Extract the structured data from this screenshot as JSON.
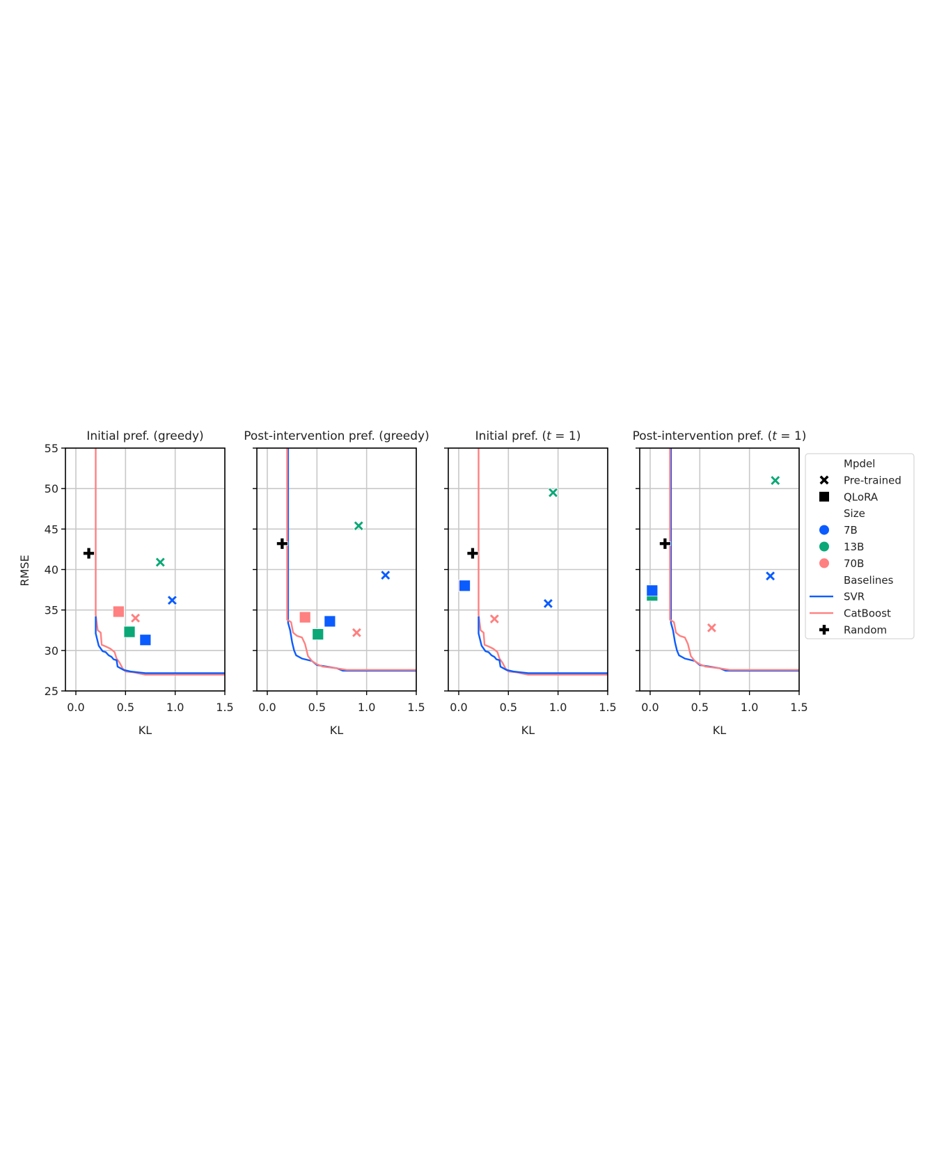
{
  "colors": {
    "7B": "#0b5cff",
    "13B": "#0aa876",
    "70B": "#ff8080",
    "SVR": "#0b5cff",
    "CatBoost": "#ff8080",
    "Random": "#000000",
    "grid": "#c8c8c8"
  },
  "legend": {
    "items": [
      {
        "kind": "header",
        "label": "Mpdel"
      },
      {
        "kind": "marker-x",
        "label": "Pre-trained",
        "color": "#000000"
      },
      {
        "kind": "marker-square",
        "label": "QLoRA",
        "color": "#000000"
      },
      {
        "kind": "header",
        "label": "Size"
      },
      {
        "kind": "marker-circle",
        "label": "7B",
        "color": "#0b5cff"
      },
      {
        "kind": "marker-circle",
        "label": "13B",
        "color": "#0aa876"
      },
      {
        "kind": "marker-circle",
        "label": "70B",
        "color": "#ff8080"
      },
      {
        "kind": "header",
        "label": "Baselines"
      },
      {
        "kind": "line",
        "label": "SVR",
        "color": "#0b5cff"
      },
      {
        "kind": "line",
        "label": "CatBoost",
        "color": "#ff8080"
      },
      {
        "kind": "marker-plus",
        "label": "Random",
        "color": "#000000"
      }
    ]
  },
  "chart_data": [
    {
      "type": "scatter",
      "title": "Initial pref. (greedy)",
      "xlabel": "KL",
      "ylabel": "RMSE",
      "xlim": [
        -0.105,
        1.5
      ],
      "ylim": [
        25,
        55
      ],
      "xticks": [
        "0.0",
        "0.5",
        "1.0",
        "1.5"
      ],
      "yticks": [
        "25",
        "30",
        "35",
        "40",
        "45",
        "50",
        "55"
      ],
      "grid": true,
      "points": [
        {
          "model": "Pre-trained",
          "size": "7B",
          "kl": 0.97,
          "rmse": 36.2
        },
        {
          "model": "Pre-trained",
          "size": "13B",
          "kl": 0.85,
          "rmse": 40.9
        },
        {
          "model": "Pre-trained",
          "size": "70B",
          "kl": 0.6,
          "rmse": 34.0
        },
        {
          "model": "QLoRA",
          "size": "7B",
          "kl": 0.7,
          "rmse": 31.3
        },
        {
          "model": "QLoRA",
          "size": "13B",
          "kl": 0.54,
          "rmse": 32.3
        },
        {
          "model": "QLoRA",
          "size": "70B",
          "kl": 0.43,
          "rmse": 34.8
        }
      ],
      "random": {
        "kl": 0.13,
        "rmse": 42.0
      },
      "baselines": {
        "CatBoost": [
          [
            0.2,
            55
          ],
          [
            0.2,
            34.4
          ],
          [
            0.21,
            33.5
          ],
          [
            0.22,
            32.5
          ],
          [
            0.25,
            32.2
          ],
          [
            0.26,
            30.7
          ],
          [
            0.3,
            30.5
          ],
          [
            0.35,
            30.2
          ],
          [
            0.39,
            29.8
          ],
          [
            0.41,
            29.0
          ],
          [
            0.44,
            28.5
          ],
          [
            0.47,
            27.8
          ],
          [
            0.5,
            27.4
          ],
          [
            0.58,
            27.3
          ],
          [
            0.62,
            27.2
          ],
          [
            0.7,
            27.0
          ],
          [
            1.5,
            27.0
          ]
        ],
        "SVR": [
          [
            0.2,
            34.2
          ],
          [
            0.2,
            32.1
          ],
          [
            0.23,
            30.6
          ],
          [
            0.27,
            29.9
          ],
          [
            0.3,
            29.8
          ],
          [
            0.33,
            29.4
          ],
          [
            0.36,
            29.2
          ],
          [
            0.38,
            28.9
          ],
          [
            0.41,
            28.8
          ],
          [
            0.42,
            28.0
          ],
          [
            0.45,
            27.8
          ],
          [
            0.48,
            27.6
          ],
          [
            0.55,
            27.4
          ],
          [
            0.62,
            27.3
          ],
          [
            0.7,
            27.2
          ],
          [
            1.5,
            27.2
          ]
        ]
      }
    },
    {
      "type": "scatter",
      "title": "Post-intervention pref. (greedy)",
      "xlabel": "KL",
      "ylabel": "",
      "xlim": [
        -0.105,
        1.5
      ],
      "ylim": [
        25,
        55
      ],
      "xticks": [
        "0.0",
        "0.5",
        "1.0",
        "1.5"
      ],
      "yticks": [],
      "grid": true,
      "points": [
        {
          "model": "Pre-trained",
          "size": "7B",
          "kl": 1.19,
          "rmse": 39.3
        },
        {
          "model": "Pre-trained",
          "size": "13B",
          "kl": 0.92,
          "rmse": 45.4
        },
        {
          "model": "Pre-trained",
          "size": "70B",
          "kl": 0.9,
          "rmse": 32.2
        },
        {
          "model": "QLoRA",
          "size": "7B",
          "kl": 0.63,
          "rmse": 33.6
        },
        {
          "model": "QLoRA",
          "size": "13B",
          "kl": 0.51,
          "rmse": 32.0
        },
        {
          "model": "QLoRA",
          "size": "70B",
          "kl": 0.38,
          "rmse": 34.1
        }
      ],
      "random": {
        "kl": 0.15,
        "rmse": 43.2
      },
      "baselines": {
        "SVR": [
          [
            0.21,
            55
          ],
          [
            0.21,
            33.4
          ],
          [
            0.23,
            32.5
          ],
          [
            0.25,
            31.0
          ],
          [
            0.27,
            30.0
          ],
          [
            0.29,
            29.4
          ],
          [
            0.35,
            29.0
          ],
          [
            0.45,
            28.7
          ],
          [
            0.5,
            28.2
          ],
          [
            0.6,
            28.0
          ],
          [
            0.7,
            27.8
          ],
          [
            0.76,
            27.5
          ],
          [
            1.5,
            27.5
          ]
        ],
        "CatBoost": [
          [
            0.2,
            55
          ],
          [
            0.2,
            33.8
          ],
          [
            0.24,
            33.5
          ],
          [
            0.26,
            32.2
          ],
          [
            0.3,
            31.8
          ],
          [
            0.35,
            31.6
          ],
          [
            0.38,
            30.8
          ],
          [
            0.41,
            29.3
          ],
          [
            0.45,
            28.7
          ],
          [
            0.5,
            28.3
          ],
          [
            0.56,
            28.0
          ],
          [
            0.7,
            27.8
          ],
          [
            0.8,
            27.6
          ],
          [
            1.5,
            27.6
          ]
        ]
      }
    },
    {
      "type": "scatter",
      "title": "Initial pref. (t = 1)",
      "xlabel": "KL",
      "ylabel": "",
      "xlim": [
        -0.105,
        1.5
      ],
      "ylim": [
        25,
        55
      ],
      "xticks": [
        "0.0",
        "0.5",
        "1.0",
        "1.5"
      ],
      "yticks": [],
      "grid": true,
      "points": [
        {
          "model": "Pre-trained",
          "size": "7B",
          "kl": 0.9,
          "rmse": 35.8
        },
        {
          "model": "Pre-trained",
          "size": "13B",
          "kl": 0.95,
          "rmse": 49.5
        },
        {
          "model": "Pre-trained",
          "size": "70B",
          "kl": 0.36,
          "rmse": 33.9
        },
        {
          "model": "QLoRA",
          "size": "70B",
          "kl": 0.05,
          "rmse": 38.0
        },
        {
          "model": "QLoRA",
          "size": "13B",
          "kl": 0.06,
          "rmse": 38.0
        },
        {
          "model": "QLoRA",
          "size": "7B",
          "kl": 0.06,
          "rmse": 38.0
        }
      ],
      "random": {
        "kl": 0.14,
        "rmse": 42.0
      },
      "baselines": {
        "CatBoost": [
          [
            0.2,
            55
          ],
          [
            0.2,
            34.4
          ],
          [
            0.21,
            33.5
          ],
          [
            0.22,
            32.5
          ],
          [
            0.25,
            32.2
          ],
          [
            0.26,
            30.7
          ],
          [
            0.3,
            30.5
          ],
          [
            0.35,
            30.2
          ],
          [
            0.39,
            29.8
          ],
          [
            0.41,
            29.0
          ],
          [
            0.44,
            28.5
          ],
          [
            0.47,
            27.8
          ],
          [
            0.5,
            27.4
          ],
          [
            0.58,
            27.3
          ],
          [
            0.62,
            27.2
          ],
          [
            0.7,
            27.0
          ],
          [
            1.5,
            27.0
          ]
        ],
        "SVR": [
          [
            0.2,
            34.2
          ],
          [
            0.2,
            32.1
          ],
          [
            0.23,
            30.6
          ],
          [
            0.27,
            29.9
          ],
          [
            0.3,
            29.8
          ],
          [
            0.33,
            29.4
          ],
          [
            0.36,
            29.2
          ],
          [
            0.38,
            28.9
          ],
          [
            0.41,
            28.8
          ],
          [
            0.42,
            28.0
          ],
          [
            0.45,
            27.8
          ],
          [
            0.48,
            27.6
          ],
          [
            0.55,
            27.4
          ],
          [
            0.62,
            27.3
          ],
          [
            0.7,
            27.2
          ],
          [
            1.5,
            27.2
          ]
        ]
      }
    },
    {
      "type": "scatter",
      "title": "Post-intervention pref. (t = 1)",
      "xlabel": "KL",
      "ylabel": "",
      "xlim": [
        -0.105,
        1.5
      ],
      "ylim": [
        25,
        55
      ],
      "xticks": [
        "0.0",
        "0.5",
        "1.0",
        "1.5"
      ],
      "yticks": [],
      "grid": true,
      "points": [
        {
          "model": "Pre-trained",
          "size": "7B",
          "kl": 1.21,
          "rmse": 39.2
        },
        {
          "model": "Pre-trained",
          "size": "13B",
          "kl": 1.26,
          "rmse": 51.0
        },
        {
          "model": "Pre-trained",
          "size": "70B",
          "kl": 0.62,
          "rmse": 32.8
        },
        {
          "model": "QLoRA",
          "size": "13B",
          "kl": 0.02,
          "rmse": 36.8
        },
        {
          "model": "QLoRA",
          "size": "7B",
          "kl": 0.02,
          "rmse": 37.4
        }
      ],
      "random": {
        "kl": 0.15,
        "rmse": 43.2
      },
      "baselines": {
        "SVR": [
          [
            0.21,
            55
          ],
          [
            0.21,
            33.4
          ],
          [
            0.23,
            32.5
          ],
          [
            0.25,
            31.0
          ],
          [
            0.27,
            30.0
          ],
          [
            0.29,
            29.4
          ],
          [
            0.35,
            29.0
          ],
          [
            0.45,
            28.7
          ],
          [
            0.5,
            28.2
          ],
          [
            0.6,
            28.0
          ],
          [
            0.7,
            27.8
          ],
          [
            0.76,
            27.5
          ],
          [
            1.5,
            27.5
          ]
        ],
        "CatBoost": [
          [
            0.2,
            55
          ],
          [
            0.2,
            33.8
          ],
          [
            0.24,
            33.5
          ],
          [
            0.26,
            32.2
          ],
          [
            0.3,
            31.8
          ],
          [
            0.35,
            31.6
          ],
          [
            0.38,
            30.8
          ],
          [
            0.41,
            29.3
          ],
          [
            0.45,
            28.7
          ],
          [
            0.5,
            28.3
          ],
          [
            0.56,
            28.0
          ],
          [
            0.7,
            27.8
          ],
          [
            0.8,
            27.6
          ],
          [
            1.5,
            27.6
          ]
        ]
      }
    }
  ]
}
